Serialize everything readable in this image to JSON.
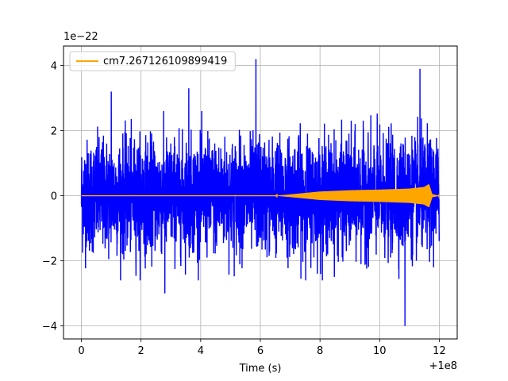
{
  "chart_data": {
    "type": "line",
    "title": "",
    "xlabel": "Time (s)",
    "ylabel": "",
    "x_offset_text": "+1e8",
    "y_scale_text": "1e−22",
    "xlim": [
      -0.6,
      12.6
    ],
    "ylim": [
      -4.4,
      4.6
    ],
    "xticks": [
      0,
      2,
      4,
      6,
      8,
      10,
      12
    ],
    "xtick_labels": [
      "0",
      "2",
      "4",
      "6",
      "8",
      "10",
      "12"
    ],
    "yticks": [
      -4,
      -2,
      0,
      2,
      4
    ],
    "ytick_labels": [
      "−4",
      "−2",
      "0",
      "2",
      "4"
    ],
    "grid": true,
    "legend_position": "top-left",
    "series": [
      {
        "name": "",
        "color": "#0000ff",
        "description_range": {
          "x": [
            0,
            12
          ],
          "typical_envelope": [
            -2.0,
            2.0
          ]
        },
        "peaks": [
          {
            "x": 5.85,
            "y": 4.2
          },
          {
            "x": 11.35,
            "y": 3.9
          },
          {
            "x": 10.85,
            "y": -4.0
          },
          {
            "x": 1.0,
            "y": 3.2
          },
          {
            "x": 3.6,
            "y": 3.3
          },
          {
            "x": 2.8,
            "y": -3.0
          }
        ]
      },
      {
        "name": "cm7.267126109899419",
        "color": "#ffa500",
        "x": [
          0,
          6.5,
          7.0,
          8.0,
          9.0,
          10.0,
          11.0,
          11.5,
          11.65,
          11.75,
          12.0
        ],
        "envelope": [
          0,
          0,
          0.04,
          0.13,
          0.17,
          0.19,
          0.22,
          0.27,
          0.35,
          0.05,
          0
        ]
      }
    ]
  }
}
